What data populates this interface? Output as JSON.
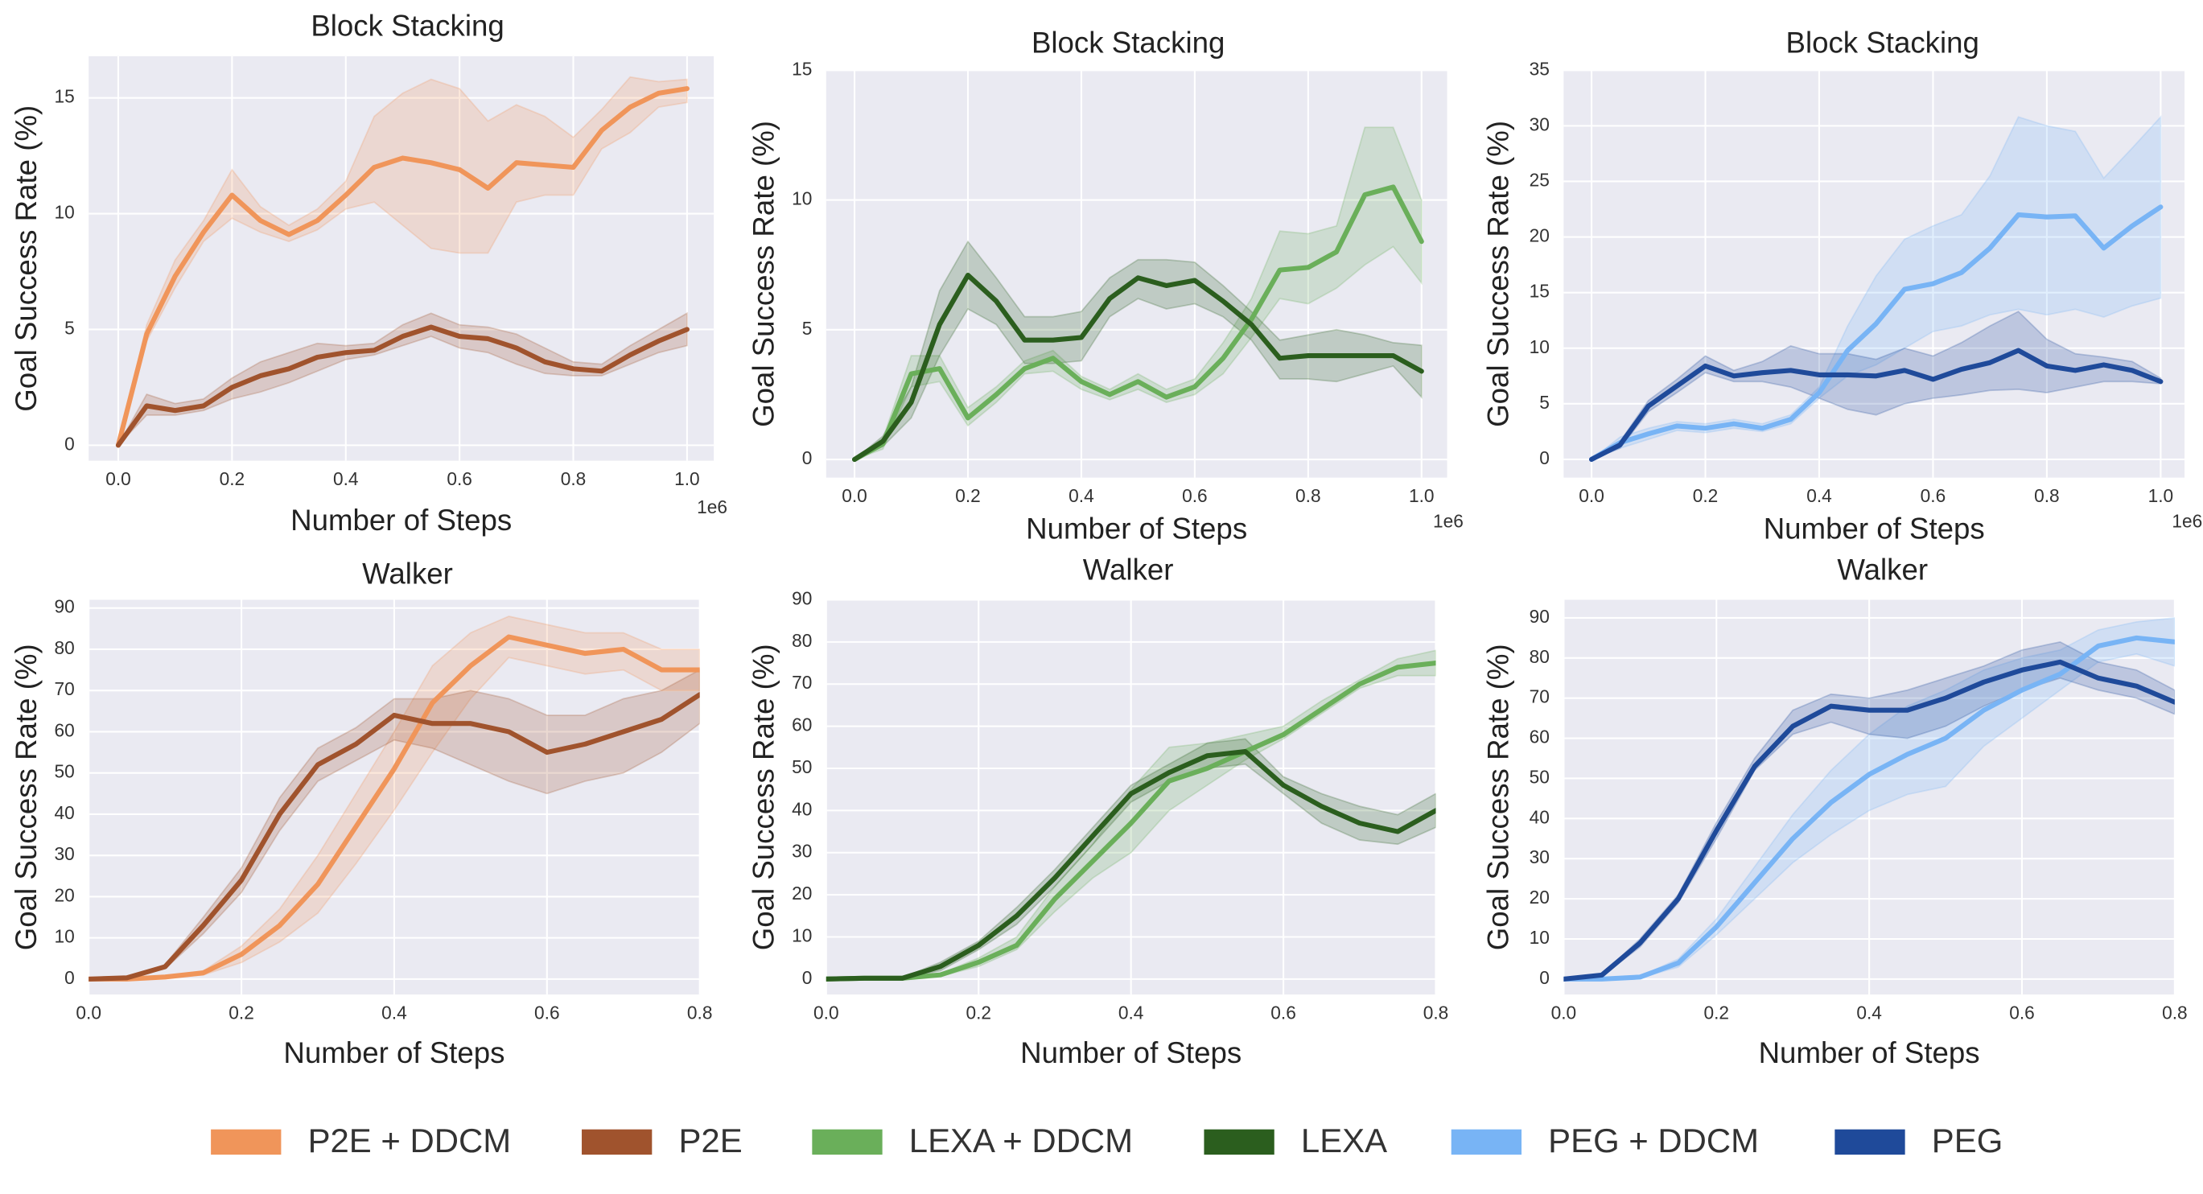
{
  "chart_data": [
    {
      "type": "line",
      "title": "Block Stacking",
      "xlabel": "Number of Steps",
      "ylabel": "Goal Success Rate (%)",
      "x_offset_label": "1e6",
      "x": [
        0,
        0.05,
        0.1,
        0.15,
        0.2,
        0.25,
        0.3,
        0.35,
        0.4,
        0.45,
        0.5,
        0.55,
        0.6,
        0.65,
        0.7,
        0.75,
        0.8,
        0.85,
        0.9,
        0.95,
        1.0
      ],
      "xlim": [
        -0.052,
        1.047
      ],
      "ylim": [
        -0.67,
        16.8
      ],
      "xticks": [
        {
          "value": 0,
          "label": "0.0"
        },
        0.2,
        0.4,
        0.6,
        0.8,
        {
          "value": 1,
          "label": "1.0"
        }
      ],
      "yticks": [
        0,
        5,
        10,
        15
      ],
      "grid": true,
      "series": [
        {
          "name": "P2E + DDCM",
          "color": "#f0955a",
          "values": [
            0,
            4.8,
            7.3,
            9.2,
            10.8,
            9.7,
            9.1,
            9.7,
            10.8,
            12.0,
            12.4,
            12.2,
            11.9,
            11.1,
            12.2,
            12.1,
            12.0,
            13.6,
            14.6,
            15.2,
            15.4
          ],
          "lower": [
            0,
            4.5,
            6.8,
            8.8,
            9.8,
            9.2,
            8.8,
            9.3,
            10.2,
            10.5,
            9.5,
            8.5,
            8.3,
            8.3,
            10.5,
            10.8,
            10.8,
            12.8,
            13.5,
            14.6,
            14.8
          ],
          "upper": [
            0,
            5.2,
            8.0,
            9.7,
            11.9,
            10.3,
            9.5,
            10.2,
            11.4,
            14.2,
            15.2,
            15.8,
            15.4,
            14.0,
            14.7,
            14.2,
            13.3,
            14.5,
            15.9,
            15.7,
            15.8
          ]
        },
        {
          "name": "P2E",
          "color": "#a0532d",
          "values": [
            0,
            1.7,
            1.5,
            1.7,
            2.5,
            3.0,
            3.3,
            3.8,
            4.0,
            4.1,
            4.7,
            5.1,
            4.7,
            4.6,
            4.2,
            3.6,
            3.3,
            3.2,
            3.9,
            4.5,
            5.0
          ],
          "lower": [
            0,
            1.3,
            1.3,
            1.5,
            2.0,
            2.3,
            2.7,
            3.2,
            3.7,
            3.9,
            4.3,
            4.7,
            4.2,
            4.0,
            3.5,
            3.1,
            3.0,
            3.0,
            3.5,
            4.0,
            4.3
          ],
          "upper": [
            0,
            2.2,
            1.8,
            2.0,
            2.9,
            3.6,
            4.0,
            4.4,
            4.3,
            4.4,
            5.2,
            5.7,
            5.2,
            5.1,
            4.8,
            4.2,
            3.6,
            3.5,
            4.3,
            5.0,
            5.7
          ]
        }
      ]
    },
    {
      "type": "line",
      "title": "Block Stacking",
      "xlabel": "Number of Steps",
      "ylabel": "Goal Success Rate (%)",
      "x_offset_label": "1e6",
      "x": [
        0,
        0.05,
        0.1,
        0.15,
        0.2,
        0.25,
        0.3,
        0.35,
        0.4,
        0.45,
        0.5,
        0.55,
        0.6,
        0.65,
        0.7,
        0.75,
        0.8,
        0.85,
        0.9,
        0.95,
        1.0
      ],
      "xlim": [
        -0.05,
        1.045
      ],
      "ylim": [
        -0.7,
        15
      ],
      "xticks": [
        {
          "value": 0,
          "label": "0.0"
        },
        0.2,
        0.4,
        0.6,
        0.8,
        {
          "value": 1,
          "label": "1.0"
        }
      ],
      "yticks": [
        0,
        5,
        10,
        15
      ],
      "grid": true,
      "series": [
        {
          "name": "LEXA + DDCM",
          "color": "#6aaf5a",
          "values": [
            0,
            0.6,
            3.3,
            3.5,
            1.6,
            2.5,
            3.5,
            3.9,
            3.0,
            2.5,
            3.0,
            2.4,
            2.8,
            3.9,
            5.4,
            7.3,
            7.4,
            8.0,
            10.2,
            10.5,
            8.4
          ],
          "lower": [
            0,
            0.4,
            2.8,
            3.0,
            1.3,
            2.2,
            3.3,
            3.4,
            2.7,
            2.3,
            2.7,
            2.2,
            2.5,
            3.3,
            4.7,
            6.2,
            6.0,
            6.6,
            7.5,
            8.2,
            6.8
          ],
          "upper": [
            0,
            0.8,
            4.0,
            4.0,
            2.0,
            2.8,
            3.8,
            4.2,
            3.2,
            2.7,
            3.3,
            2.7,
            3.1,
            4.5,
            6.2,
            8.8,
            8.7,
            9.0,
            12.8,
            12.8,
            10.0
          ]
        },
        {
          "name": "LEXA",
          "color": "#2b5e1e",
          "values": [
            0,
            0.7,
            2.2,
            5.2,
            7.1,
            6.1,
            4.6,
            4.6,
            4.7,
            6.2,
            7.0,
            6.7,
            6.9,
            6.1,
            5.2,
            3.9,
            4.0,
            4.0,
            4.0,
            4.0,
            3.4
          ],
          "lower": [
            0,
            0.5,
            1.6,
            4.0,
            5.8,
            5.2,
            3.7,
            3.7,
            3.8,
            5.5,
            6.2,
            5.8,
            6.0,
            5.5,
            4.6,
            3.1,
            3.1,
            3.0,
            3.3,
            3.6,
            2.4
          ],
          "upper": [
            0,
            0.9,
            2.8,
            6.5,
            8.4,
            7.0,
            5.5,
            5.5,
            5.7,
            7.0,
            7.7,
            7.7,
            7.6,
            6.7,
            5.7,
            4.6,
            4.8,
            5.0,
            4.8,
            4.5,
            4.4
          ]
        }
      ]
    },
    {
      "type": "line",
      "title": "Block Stacking",
      "xlabel": "Number of Steps",
      "ylabel": "Goal Success Rate (%)",
      "x_offset_label": "1e6",
      "x": [
        0,
        0.05,
        0.1,
        0.15,
        0.2,
        0.25,
        0.3,
        0.35,
        0.4,
        0.45,
        0.5,
        0.55,
        0.6,
        0.65,
        0.7,
        0.75,
        0.8,
        0.85,
        0.9,
        0.95,
        1.0
      ],
      "xlim": [
        -0.049,
        1.042
      ],
      "ylim": [
        -1.64,
        35
      ],
      "xticks": [
        {
          "value": 0,
          "label": "0.0"
        },
        0.2,
        0.4,
        0.6,
        0.8,
        {
          "value": 1,
          "label": "1.0"
        }
      ],
      "yticks": [
        0,
        5,
        10,
        15,
        20,
        25,
        30,
        35
      ],
      "grid": true,
      "series": [
        {
          "name": "PEG + DDCM",
          "color": "#78b4f5",
          "values": [
            0,
            1.5,
            2.3,
            3.0,
            2.8,
            3.2,
            2.8,
            3.6,
            6.0,
            9.8,
            12.2,
            15.3,
            15.8,
            16.8,
            19.0,
            22.0,
            21.8,
            21.9,
            19.0,
            21.0,
            22.7
          ],
          "lower": [
            0,
            1.0,
            1.8,
            2.6,
            2.4,
            2.8,
            2.5,
            3.2,
            5.5,
            7.5,
            8.5,
            10.0,
            11.5,
            12.0,
            13.0,
            13.5,
            13.0,
            13.5,
            12.8,
            13.8,
            14.5
          ],
          "upper": [
            0,
            2.0,
            2.8,
            3.4,
            3.2,
            3.6,
            3.2,
            4.0,
            6.5,
            12.0,
            16.5,
            19.8,
            21.0,
            22.0,
            25.5,
            30.8,
            30.0,
            29.5,
            25.3,
            28.0,
            30.8
          ]
        },
        {
          "name": "PEG",
          "color": "#1f4a9a",
          "values": [
            0,
            1.3,
            4.8,
            6.6,
            8.4,
            7.5,
            7.8,
            8.0,
            7.6,
            7.6,
            7.5,
            8.0,
            7.2,
            8.1,
            8.7,
            9.8,
            8.4,
            8.0,
            8.5,
            8.0,
            7.0
          ],
          "lower": [
            0,
            1.0,
            4.3,
            6.0,
            7.8,
            7.0,
            7.0,
            6.5,
            5.5,
            4.5,
            4.0,
            5.0,
            5.5,
            5.8,
            6.2,
            6.3,
            6.0,
            6.5,
            7.0,
            7.0,
            6.8
          ],
          "upper": [
            0,
            1.6,
            5.3,
            7.2,
            9.3,
            8.0,
            8.8,
            10.2,
            9.5,
            9.5,
            9.0,
            10.0,
            9.3,
            10.5,
            12.0,
            13.3,
            10.8,
            9.5,
            9.2,
            8.8,
            7.3
          ]
        }
      ]
    },
    {
      "type": "line",
      "title": "Walker",
      "xlabel": "Number of Steps",
      "ylabel": "Goal Success Rate (%)",
      "x": [
        0,
        0.05,
        0.1,
        0.15,
        0.2,
        0.25,
        0.3,
        0.35,
        0.4,
        0.45,
        0.5,
        0.55,
        0.6,
        0.65,
        0.7,
        0.75,
        0.8
      ],
      "xlim": [
        0,
        0.8
      ],
      "ylim": [
        -3.75,
        92
      ],
      "xticks": [
        {
          "value": 0,
          "label": "0.0"
        },
        0.2,
        0.4,
        0.6,
        0.8
      ],
      "yticks": [
        0,
        10,
        20,
        30,
        40,
        50,
        60,
        70,
        80,
        90
      ],
      "grid": true,
      "series": [
        {
          "name": "P2E + DDCM",
          "color": "#f0955a",
          "values": [
            0,
            0,
            0.5,
            1.5,
            6,
            13,
            23,
            37,
            51,
            67,
            76,
            83,
            81,
            79,
            80,
            75,
            75
          ],
          "lower": [
            0,
            0,
            0.3,
            1,
            4,
            9,
            16,
            28,
            41,
            55,
            68,
            78,
            76,
            74,
            75,
            70,
            70
          ],
          "upper": [
            0,
            0,
            0.7,
            2,
            8,
            17,
            30,
            45,
            60,
            76,
            84,
            88,
            86,
            84,
            84,
            80,
            80
          ]
        },
        {
          "name": "P2E",
          "color": "#a0532d",
          "values": [
            0,
            0.3,
            3,
            13,
            24,
            40,
            52,
            57,
            64,
            62,
            62,
            60,
            55,
            57,
            60,
            63,
            69
          ],
          "lower": [
            0,
            0.2,
            2.5,
            11,
            21,
            36,
            48,
            53,
            58,
            56,
            52,
            48,
            45,
            48,
            50,
            55,
            62
          ],
          "upper": [
            0,
            0.4,
            3.5,
            15,
            27,
            44,
            56,
            61,
            68,
            68,
            70,
            68,
            64,
            64,
            68,
            70,
            75
          ]
        }
      ]
    },
    {
      "type": "line",
      "title": "Walker",
      "xlabel": "Number of Steps",
      "ylabel": "Goal Success Rate (%)",
      "x": [
        0,
        0.05,
        0.1,
        0.15,
        0.2,
        0.25,
        0.3,
        0.35,
        0.4,
        0.45,
        0.5,
        0.55,
        0.6,
        0.65,
        0.7,
        0.75,
        0.8
      ],
      "xlim": [
        0,
        0.8
      ],
      "ylim": [
        -3.67,
        90
      ],
      "xticks": [
        {
          "value": 0,
          "label": "0.0"
        },
        0.2,
        0.4,
        0.6,
        0.8
      ],
      "yticks": [
        0,
        10,
        20,
        30,
        40,
        50,
        60,
        70,
        80,
        90
      ],
      "grid": true,
      "series": [
        {
          "name": "LEXA + DDCM",
          "color": "#6aaf5a",
          "values": [
            0,
            0.2,
            0.2,
            1,
            4,
            8,
            19,
            28,
            37,
            47,
            50,
            54,
            58,
            64,
            70,
            74,
            75
          ],
          "lower": [
            0,
            0.1,
            0.1,
            0.7,
            3,
            7,
            16,
            24,
            30,
            40,
            46,
            52,
            57,
            63,
            69,
            72,
            72
          ],
          "upper": [
            0,
            0.3,
            0.3,
            1.3,
            5,
            10,
            22,
            32,
            45,
            55,
            56,
            58,
            60,
            66,
            71,
            76,
            78
          ]
        },
        {
          "name": "LEXA",
          "color": "#2b5e1e",
          "values": [
            0,
            0.2,
            0.2,
            3,
            8,
            15,
            24,
            34,
            44,
            49,
            53,
            54,
            46,
            41,
            37,
            35,
            40
          ],
          "lower": [
            0,
            0.1,
            0.1,
            2,
            7,
            13,
            22,
            32,
            42,
            47,
            50,
            51,
            44,
            37,
            33,
            32,
            36
          ],
          "upper": [
            0,
            0.3,
            0.3,
            4,
            9,
            17,
            26,
            36,
            46,
            51,
            56,
            57,
            48,
            44,
            41,
            39,
            44
          ]
        }
      ]
    },
    {
      "type": "line",
      "title": "Walker",
      "xlabel": "Number of Steps",
      "ylabel": "Goal Success Rate (%)",
      "x": [
        0,
        0.05,
        0.1,
        0.15,
        0.2,
        0.25,
        0.3,
        0.35,
        0.4,
        0.45,
        0.5,
        0.55,
        0.6,
        0.65,
        0.7,
        0.75,
        0.8
      ],
      "xlim": [
        0,
        0.8
      ],
      "ylim": [
        -3.85,
        94.5
      ],
      "xticks": [
        {
          "value": 0,
          "label": "0.0"
        },
        0.2,
        0.4,
        0.6,
        0.8
      ],
      "yticks": [
        0,
        10,
        20,
        30,
        40,
        50,
        60,
        70,
        80,
        90
      ],
      "grid": true,
      "series": [
        {
          "name": "PEG + DDCM",
          "color": "#78b4f5",
          "values": [
            0,
            0,
            0.5,
            4,
            13,
            24,
            35,
            44,
            51,
            56,
            60,
            67,
            72,
            76,
            83,
            85,
            84
          ],
          "lower": [
            0,
            0,
            0.3,
            3,
            11,
            20,
            29,
            36,
            42,
            46,
            48,
            58,
            65,
            72,
            79,
            81,
            78
          ],
          "upper": [
            0,
            0,
            0.7,
            5,
            15,
            28,
            41,
            52,
            61,
            68,
            72,
            77,
            80,
            82,
            87,
            89,
            90
          ]
        },
        {
          "name": "PEG",
          "color": "#1f4a9a",
          "values": [
            0,
            1,
            9,
            20,
            37,
            53,
            63,
            68,
            67,
            67,
            70,
            74,
            77,
            79,
            75,
            73,
            69
          ],
          "lower": [
            0,
            0.8,
            8,
            19,
            35,
            52,
            61,
            64,
            61,
            60,
            63,
            68,
            72,
            75,
            72,
            70,
            66
          ],
          "upper": [
            0,
            1.2,
            10,
            21,
            39,
            55,
            67,
            71,
            70,
            72,
            75,
            78,
            82,
            84,
            79,
            77,
            72
          ]
        }
      ]
    }
  ]
}
